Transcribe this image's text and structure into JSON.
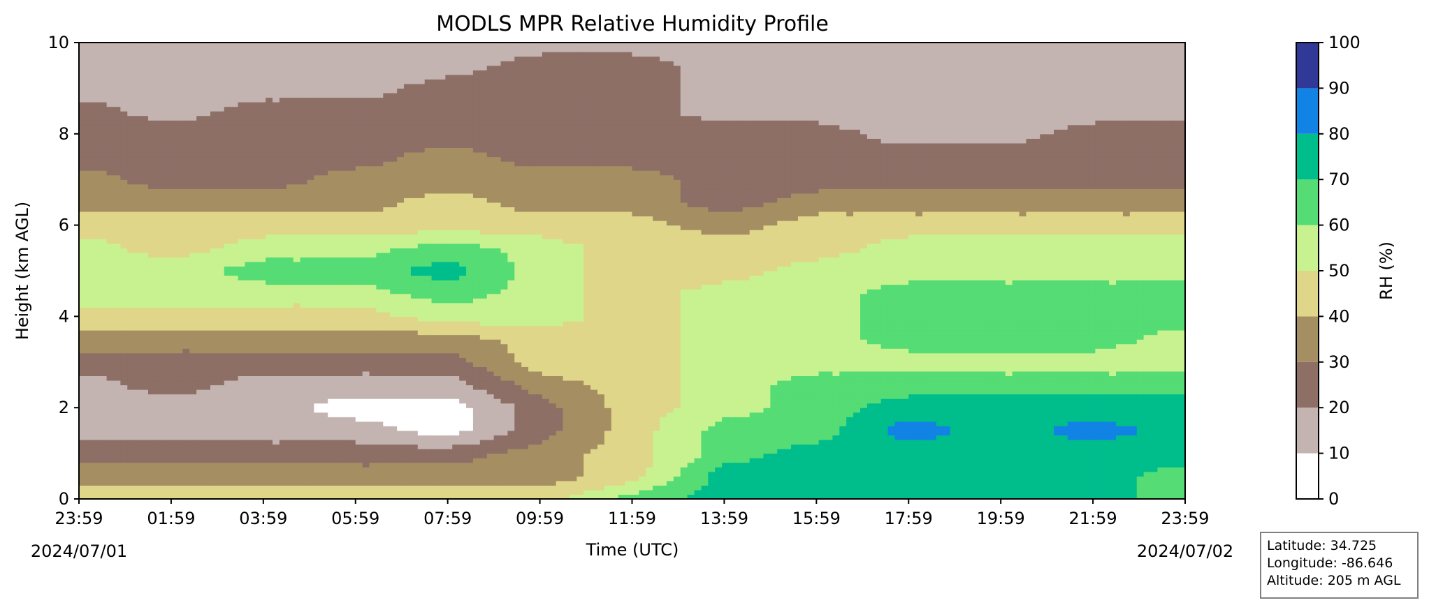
{
  "chart_data": {
    "type": "heatmap",
    "title": "MODLS MPR Relative Humidity Profile",
    "xlabel": "Time (UTC)",
    "ylabel": "Height (km AGL)",
    "xlim_hours": [
      0,
      24
    ],
    "ylim": [
      0,
      10
    ],
    "x_tick_labels": [
      "23:59",
      "01:59",
      "03:59",
      "05:59",
      "07:59",
      "09:59",
      "11:59",
      "13:59",
      "15:59",
      "17:59",
      "19:59",
      "21:59",
      "23:59"
    ],
    "y_ticks": [
      0,
      2,
      4,
      6,
      8,
      10
    ],
    "start_date": "2024/07/01",
    "end_date": "2024/07/02",
    "colorbar": {
      "label": "RH (%)",
      "levels": [
        0,
        10,
        20,
        30,
        40,
        50,
        60,
        70,
        80,
        90,
        100
      ],
      "colors": [
        "#ffffff",
        "#c4b4b1",
        "#8d6f66",
        "#a58f62",
        "#e0d68a",
        "#c8f28f",
        "#55dc74",
        "#00bd8c",
        "#1183e4",
        "#303898"
      ]
    },
    "rh_profile_x_hours": [
      0,
      2,
      4,
      6,
      8,
      10,
      12,
      14,
      16,
      18,
      20,
      22,
      24
    ],
    "rh_profile_y_km": [
      0.0,
      0.5,
      1.0,
      1.5,
      2.0,
      2.5,
      3.0,
      3.5,
      4.0,
      4.5,
      5.0,
      5.5,
      6.0,
      6.5,
      7.0,
      7.5,
      8.0,
      8.5,
      9.0,
      9.5,
      10.0
    ],
    "rh_values": [
      [
        45,
        35,
        25,
        15,
        15,
        15,
        25,
        35,
        45,
        55,
        55,
        55,
        45,
        35,
        35,
        25,
        25,
        25,
        15,
        15,
        15
      ],
      [
        45,
        35,
        25,
        15,
        15,
        25,
        25,
        35,
        45,
        55,
        55,
        45,
        45,
        35,
        25,
        25,
        25,
        15,
        15,
        15,
        15
      ],
      [
        45,
        35,
        25,
        15,
        15,
        15,
        25,
        35,
        45,
        55,
        65,
        55,
        45,
        35,
        25,
        25,
        25,
        25,
        15,
        15,
        15
      ],
      [
        45,
        35,
        25,
        15,
        5,
        15,
        25,
        35,
        45,
        55,
        65,
        55,
        45,
        35,
        35,
        25,
        25,
        25,
        15,
        15,
        15
      ],
      [
        45,
        35,
        25,
        5,
        5,
        15,
        25,
        35,
        55,
        65,
        75,
        65,
        45,
        45,
        35,
        35,
        25,
        25,
        25,
        15,
        15
      ],
      [
        45,
        35,
        35,
        25,
        25,
        35,
        45,
        45,
        55,
        55,
        55,
        55,
        45,
        35,
        35,
        25,
        25,
        25,
        25,
        25,
        15
      ],
      [
        65,
        45,
        45,
        45,
        45,
        45,
        45,
        45,
        45,
        45,
        45,
        45,
        45,
        35,
        35,
        25,
        25,
        25,
        25,
        25,
        15
      ],
      [
        75,
        75,
        65,
        65,
        55,
        55,
        55,
        55,
        55,
        55,
        45,
        45,
        35,
        25,
        25,
        25,
        25,
        15,
        15,
        15,
        15
      ],
      [
        75,
        75,
        75,
        65,
        65,
        65,
        55,
        55,
        55,
        55,
        55,
        45,
        45,
        35,
        25,
        25,
        25,
        15,
        15,
        15,
        15
      ],
      [
        75,
        75,
        75,
        85,
        75,
        65,
        55,
        65,
        65,
        65,
        55,
        55,
        45,
        35,
        25,
        25,
        15,
        15,
        15,
        15,
        15
      ],
      [
        75,
        75,
        75,
        75,
        75,
        65,
        55,
        65,
        65,
        65,
        55,
        55,
        45,
        35,
        25,
        25,
        15,
        15,
        15,
        15,
        15
      ],
      [
        75,
        75,
        75,
        85,
        75,
        65,
        55,
        65,
        65,
        65,
        55,
        55,
        45,
        35,
        25,
        25,
        25,
        15,
        15,
        15,
        15
      ],
      [
        65,
        65,
        75,
        75,
        75,
        65,
        55,
        55,
        65,
        65,
        55,
        55,
        45,
        35,
        25,
        25,
        25,
        15,
        15,
        15,
        15
      ]
    ]
  },
  "info": {
    "latitude": "Latitude: 34.725",
    "longitude": "Longitude: -86.646",
    "altitude": "Altitude: 205 m AGL"
  }
}
